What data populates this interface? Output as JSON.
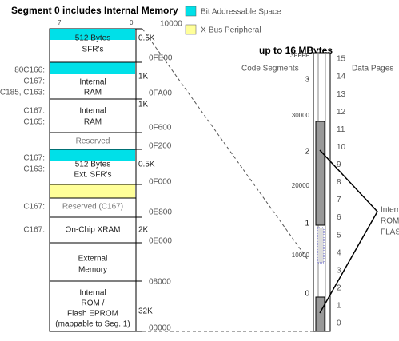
{
  "header": {
    "title": "Segment 0 includes Internal Memory",
    "right_title": "up to 16 MBytes"
  },
  "legend": [
    "Bit Addressable Space",
    "X-Bus Peripheral"
  ],
  "bit_labels": [
    "7",
    "0"
  ],
  "blocks": [
    {
      "lines": [
        "512 Bytes",
        "SFR's"
      ],
      "size": "0.5K"
    },
    {
      "lines": [
        "Internal",
        "RAM"
      ],
      "size": "1K",
      "chips": [
        "80C166:",
        "C167:",
        "C185, C163:"
      ]
    },
    {
      "lines": [
        "Internal",
        "RAM"
      ],
      "size": "1K",
      "chips": [
        "C167:",
        "C165:"
      ]
    },
    {
      "lines": [
        "Reserved"
      ]
    },
    {
      "lines": [
        "512 Bytes",
        "Ext. SFR's"
      ],
      "size": "0.5K",
      "chips": [
        "C167:",
        "C163:"
      ]
    },
    {
      "lines": [
        "Reserved (C167)"
      ],
      "chips": [
        "C167:"
      ]
    },
    {
      "lines": [
        "On-Chip XRAM"
      ],
      "size": "2K",
      "chips": [
        "C167:"
      ]
    },
    {
      "lines": [
        "External",
        "Memory"
      ]
    },
    {
      "lines": [
        "Internal",
        "ROM /",
        "Flash EPROM",
        "(mappable to Seg. 1)"
      ],
      "size": "32K"
    }
  ],
  "addresses": [
    "10000",
    "0FE00",
    "0FA00",
    "0F600",
    "0F200",
    "0F000",
    "0E800",
    "0E000",
    "08000",
    "00000"
  ],
  "code_segments": {
    "header": "Code Segments",
    "labels": [
      "3FFFF",
      "3",
      "30000",
      "2",
      "20000",
      "1",
      "10000",
      "0"
    ]
  },
  "data_pages": {
    "header": "Data Pages",
    "labels": [
      "15",
      "14",
      "13",
      "12",
      "11",
      "10",
      "9",
      "8",
      "7",
      "6",
      "5",
      "4",
      "3",
      "2",
      "1",
      "0"
    ]
  },
  "rom_label": [
    "Internal",
    "ROM/",
    "FLASH"
  ]
}
